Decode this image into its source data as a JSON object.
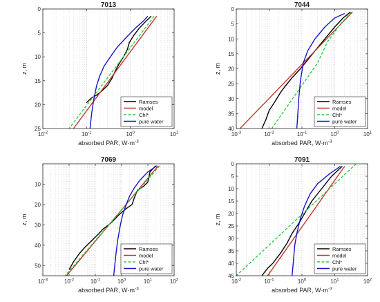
{
  "chart_data": [
    {
      "type": "line",
      "title": "7013",
      "xlabel": "absorbed PAR, W·m",
      "xlabel_sup": "-3",
      "ylabel": "z, m",
      "xscale": "log",
      "xlim": [
        0.01,
        10
      ],
      "ylim": [
        0,
        25
      ],
      "y_reversed": true,
      "x_ticks": [
        {
          "v": 0.01,
          "base": "10",
          "exp": "-2"
        },
        {
          "v": 0.1,
          "base": "10",
          "exp": "-1"
        },
        {
          "v": 1,
          "base": "10",
          "exp": "0"
        },
        {
          "v": 10,
          "base": "10",
          "exp": "1"
        }
      ],
      "y_ticks": [
        0,
        5,
        10,
        15,
        20,
        25
      ],
      "grid": "x-major-minor",
      "legend_position": "bottom-right",
      "series": [
        {
          "name": "Ramses",
          "color": "#000000",
          "style": "solid",
          "x": [
            3.0,
            2.3,
            1.6,
            1.2,
            0.95,
            0.85,
            0.7,
            0.55,
            0.45,
            0.38,
            0.3,
            0.22,
            0.17,
            0.13,
            0.11,
            0.1
          ],
          "y": [
            1.5,
            2.5,
            4,
            5.5,
            7,
            8.5,
            10,
            11.5,
            13,
            14.5,
            16,
            17.2,
            18,
            18.6,
            19.2,
            19.6
          ]
        },
        {
          "name": "model",
          "color": "#c0392b",
          "style": "solid",
          "x": [
            4.0,
            0.05
          ],
          "y": [
            1.5,
            25
          ]
        },
        {
          "name": "Chl*",
          "color": "#2ecc40",
          "style": "dashed",
          "x": [
            3.5,
            0.04
          ],
          "y": [
            1.5,
            25
          ]
        },
        {
          "name": "pure water",
          "color": "#1515c8",
          "style": "solid",
          "x": [
            2.5,
            2.0,
            1.3,
            0.8,
            0.5,
            0.35,
            0.25,
            0.2,
            0.17,
            0.145,
            0.13,
            0.12
          ],
          "y": [
            1.5,
            2.5,
            4,
            6,
            8,
            10,
            12,
            14,
            16,
            19,
            22,
            25
          ]
        }
      ]
    },
    {
      "type": "line",
      "title": "7044",
      "xlabel": "absorbed PAR, W·m",
      "xlabel_sup": "-3",
      "ylabel": "z, m",
      "xscale": "log",
      "xlim": [
        0.001,
        10
      ],
      "ylim": [
        0,
        40
      ],
      "y_reversed": true,
      "x_ticks": [
        {
          "v": 0.001,
          "base": "10",
          "exp": "-3"
        },
        {
          "v": 0.01,
          "base": "10",
          "exp": "-2"
        },
        {
          "v": 0.1,
          "base": "10",
          "exp": "-1"
        },
        {
          "v": 1,
          "base": "10",
          "exp": "0"
        },
        {
          "v": 10,
          "base": "10",
          "exp": "1"
        }
      ],
      "y_ticks": [
        0,
        5,
        10,
        15,
        20,
        25,
        30,
        35,
        40
      ],
      "grid": "x-major-minor",
      "legend_position": "bottom-right",
      "series": [
        {
          "name": "Ramses",
          "color": "#000000",
          "style": "solid",
          "x": [
            3.0,
            1.8,
            1.0,
            0.5,
            0.25,
            0.15,
            0.09,
            0.05,
            0.03,
            0.022,
            0.015,
            0.01,
            0.008,
            0.006
          ],
          "y": [
            1,
            3,
            6,
            10,
            14,
            17,
            20,
            23,
            26,
            28,
            31,
            34,
            37,
            40
          ]
        },
        {
          "name": "model",
          "color": "#c0392b",
          "style": "solid",
          "x": [
            3.5,
            0.0013
          ],
          "y": [
            1,
            40
          ]
        },
        {
          "name": "Chl*",
          "color": "#2ecc40",
          "style": "dashed",
          "x": [
            3.2,
            1.5,
            0.6,
            0.3,
            0.012
          ],
          "y": [
            1,
            5,
            11,
            18,
            40
          ]
        },
        {
          "name": "pure water",
          "color": "#1515c8",
          "style": "solid",
          "x": [
            2.0,
            1.0,
            0.5,
            0.25,
            0.15,
            0.11,
            0.09,
            0.08,
            0.075,
            0.07
          ],
          "y": [
            1.5,
            3,
            6,
            10,
            14,
            18,
            24,
            30,
            35,
            40
          ]
        }
      ]
    },
    {
      "type": "line",
      "title": "7069",
      "xlabel": "absorbed PAR, W·m",
      "xlabel_sup": "-3",
      "ylabel": "z, m",
      "xscale": "log",
      "xlim": [
        0.001,
        100
      ],
      "ylim": [
        0,
        55
      ],
      "y_reversed": true,
      "x_ticks": [
        {
          "v": 0.001,
          "base": "10",
          "exp": "-3"
        },
        {
          "v": 0.01,
          "base": "10",
          "exp": "-2"
        },
        {
          "v": 0.1,
          "base": "10",
          "exp": "-1"
        },
        {
          "v": 1,
          "base": "10",
          "exp": "0"
        },
        {
          "v": 10,
          "base": "10",
          "exp": "1"
        },
        {
          "v": 100,
          "base": "10",
          "exp": "2"
        }
      ],
      "y_ticks": [
        10,
        20,
        30,
        40,
        50
      ],
      "grid": "x-major-minor",
      "legend_position": "bottom-right",
      "series": [
        {
          "name": "Ramses",
          "color": "#000000",
          "style": "solid",
          "x": [
            20,
            12,
            10,
            7,
            4,
            3,
            2.5,
            1.5,
            0.8,
            0.4,
            0.2,
            0.12,
            0.07,
            0.04,
            0.025,
            0.015,
            0.01
          ],
          "y": [
            1,
            4,
            9,
            11,
            13,
            17,
            20,
            22,
            25,
            29,
            32,
            35,
            38,
            41,
            44,
            48,
            52
          ]
        },
        {
          "name": "model",
          "color": "#c0392b",
          "style": "solid",
          "x": [
            25,
            0.008
          ],
          "y": [
            1,
            55
          ]
        },
        {
          "name": "Chl*",
          "color": "#2ecc40",
          "style": "dashed",
          "x": [
            28,
            0.007
          ],
          "y": [
            1,
            55
          ]
        },
        {
          "name": "pure water",
          "color": "#1515c8",
          "style": "solid",
          "x": [
            22,
            10,
            5,
            3,
            2,
            1.5,
            1.1,
            0.9,
            0.7,
            0.6,
            0.5
          ],
          "y": [
            1,
            4,
            8,
            12,
            16,
            20,
            25,
            30,
            38,
            45,
            55
          ]
        }
      ]
    },
    {
      "type": "line",
      "title": "7091",
      "xlabel": "absorbed PAR, W·m",
      "xlabel_sup": "-3",
      "ylabel": "z, m",
      "xscale": "log",
      "xlim": [
        0.01,
        100
      ],
      "ylim": [
        0,
        45
      ],
      "y_reversed": true,
      "x_ticks": [
        {
          "v": 0.01,
          "base": "10",
          "exp": "-2"
        },
        {
          "v": 0.1,
          "base": "10",
          "exp": "-1"
        },
        {
          "v": 1,
          "base": "10",
          "exp": "0"
        },
        {
          "v": 10,
          "base": "10",
          "exp": "1"
        },
        {
          "v": 100,
          "base": "10",
          "exp": "2"
        }
      ],
      "y_ticks": [
        0,
        5,
        10,
        15,
        20,
        25,
        30,
        35,
        40,
        45
      ],
      "grid": "x-major-minor",
      "legend_position": "bottom-right",
      "series": [
        {
          "name": "Ramses",
          "color": "#000000",
          "style": "solid",
          "x": [
            17,
            8,
            4,
            2,
            1.2,
            0.8,
            0.5,
            0.35,
            0.22,
            0.13,
            0.09,
            0.06
          ],
          "y": [
            1,
            5,
            10,
            15,
            20,
            24,
            28,
            32,
            36,
            40,
            42,
            45
          ]
        },
        {
          "name": "model",
          "color": "#c0392b",
          "style": "solid",
          "x": [
            20,
            0.09
          ],
          "y": [
            1,
            45
          ]
        },
        {
          "name": "Chl*",
          "color": "#2ecc40",
          "style": "dashed",
          "x": [
            45,
            0.01
          ],
          "y": [
            0,
            45
          ]
        },
        {
          "name": "pure water",
          "color": "#1515c8",
          "style": "solid",
          "x": [
            15,
            7,
            3,
            1.8,
            1.2,
            0.9,
            0.7,
            0.6,
            0.55,
            0.5
          ],
          "y": [
            1,
            4,
            8,
            12,
            17,
            22,
            28,
            33,
            39,
            45
          ]
        }
      ]
    }
  ]
}
